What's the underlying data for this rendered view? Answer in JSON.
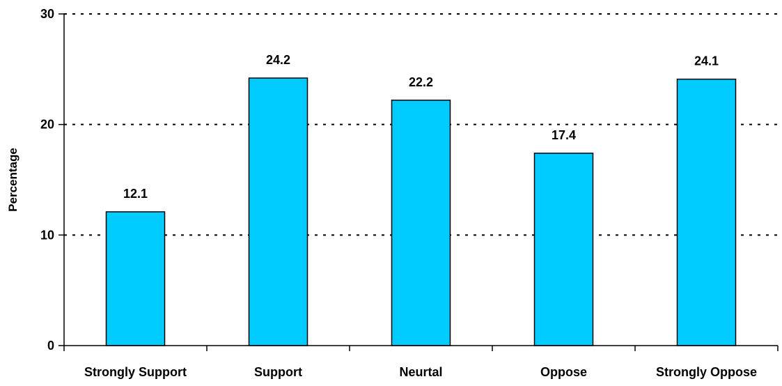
{
  "chart_data": {
    "type": "bar",
    "title": "",
    "xlabel": "",
    "ylabel": "Percentage",
    "ylim": [
      0,
      30
    ],
    "yticks": [
      0,
      10,
      20,
      30
    ],
    "categories": [
      "Strongly Support",
      "Support",
      "Neurtal",
      "Oppose",
      "Strongly Oppose"
    ],
    "values": [
      12.1,
      24.2,
      22.2,
      17.4,
      24.1
    ],
    "data_labels": [
      "12.1",
      "24.2",
      "22.2",
      "17.4",
      "24.1"
    ],
    "grid": "horizontal dotted",
    "legend": "none",
    "colors": {
      "bar_fill": "#00CCFF",
      "bar_stroke": "#000000",
      "grid": "#000000",
      "axis": "#000000"
    }
  }
}
